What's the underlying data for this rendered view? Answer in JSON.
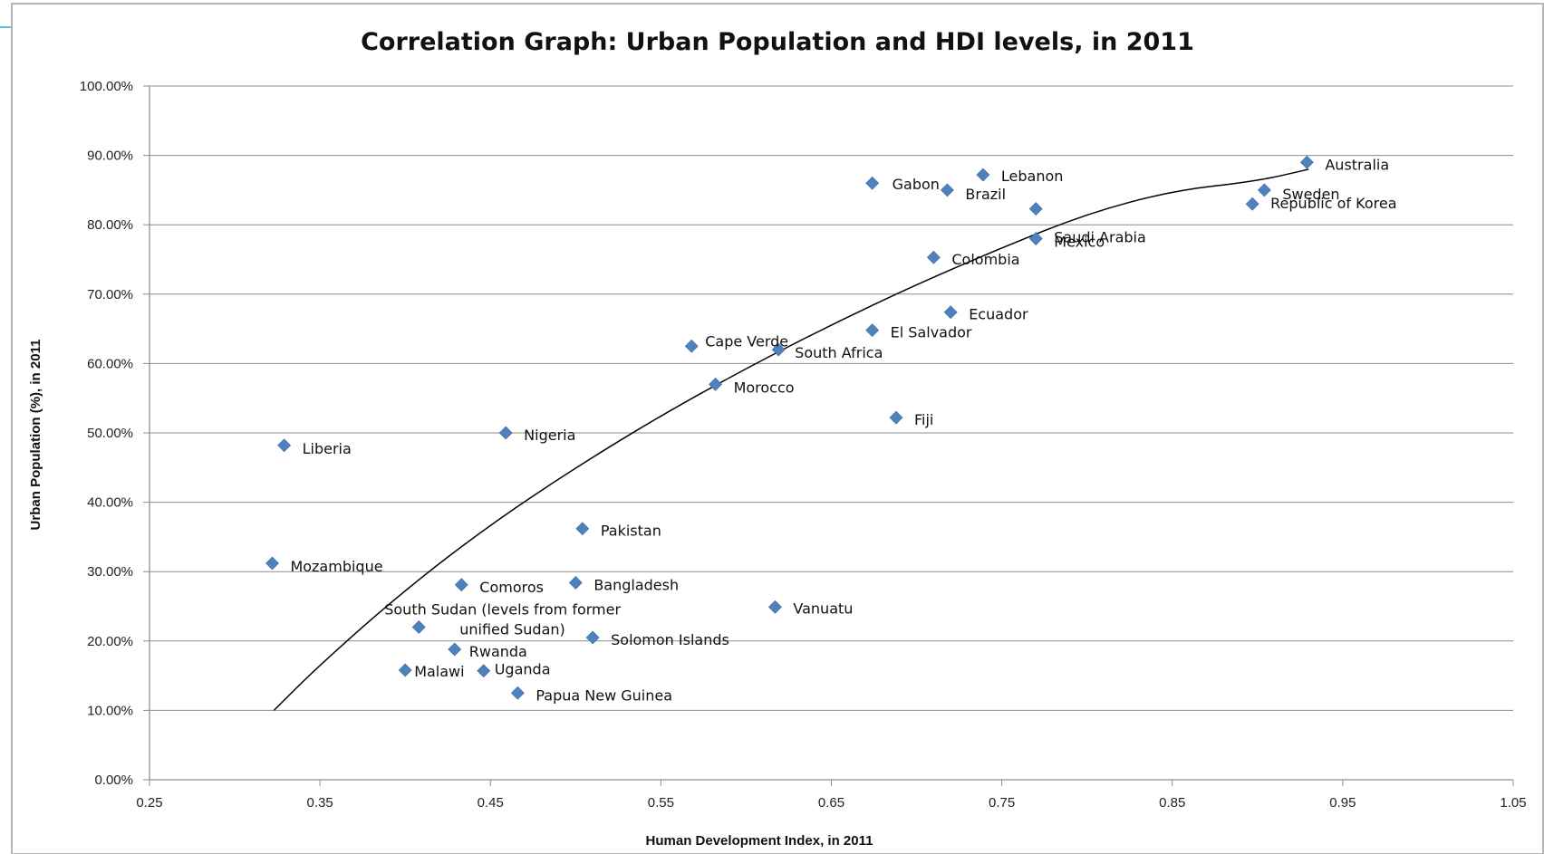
{
  "chart_data": {
    "type": "scatter",
    "title": "Correlation Graph: Urban Population and HDI levels, in 2011",
    "xlabel": "Human Development Index, in 2011",
    "ylabel": "Urban Population (%), in 2011",
    "xlim": [
      0.25,
      1.05
    ],
    "ylim": [
      0,
      100
    ],
    "x_ticks": [
      0.25,
      0.35,
      0.45,
      0.55,
      0.65,
      0.75,
      0.85,
      0.95,
      1.05
    ],
    "x_tick_labels": [
      "0.25",
      "0.35",
      "0.45",
      "0.55",
      "0.65",
      "0.75",
      "0.85",
      "0.95",
      "1.05"
    ],
    "y_ticks": [
      0,
      10,
      20,
      30,
      40,
      50,
      60,
      70,
      80,
      90,
      100
    ],
    "y_tick_labels": [
      "0.00%",
      "10.00%",
      "20.00%",
      "30.00%",
      "40.00%",
      "50.00%",
      "60.00%",
      "70.00%",
      "80.00%",
      "90.00%",
      "100.00%"
    ],
    "grid": "horizontal",
    "marker_color": "#4f81bd",
    "trendline": {
      "type": "logarithmic",
      "color": "#000000",
      "points": [
        {
          "x": 0.323,
          "y": 10.0
        },
        {
          "x": 0.35,
          "y": 16.6
        },
        {
          "x": 0.4,
          "y": 27.4
        },
        {
          "x": 0.45,
          "y": 36.8
        },
        {
          "x": 0.5,
          "y": 45.0
        },
        {
          "x": 0.55,
          "y": 52.5
        },
        {
          "x": 0.6,
          "y": 59.3
        },
        {
          "x": 0.65,
          "y": 65.6
        },
        {
          "x": 0.7,
          "y": 71.4
        },
        {
          "x": 0.75,
          "y": 76.7
        },
        {
          "x": 0.8,
          "y": 81.6
        },
        {
          "x": 0.85,
          "y": 84.9
        },
        {
          "x": 0.9,
          "y": 86.3
        },
        {
          "x": 0.93,
          "y": 88.0
        }
      ]
    },
    "points": [
      {
        "name": "Australia",
        "x": 0.929,
        "y": 89.0
      },
      {
        "name": "Sweden",
        "x": 0.904,
        "y": 85.0
      },
      {
        "name": "Republic of Korea",
        "x": 0.897,
        "y": 83.0
      },
      {
        "name": "Lebanon",
        "x": 0.739,
        "y": 87.2
      },
      {
        "name": "Gabon",
        "x": 0.674,
        "y": 86.0
      },
      {
        "name": "Brazil",
        "x": 0.718,
        "y": 85.0
      },
      {
        "name": "Saudi Arabia",
        "x": 0.77,
        "y": 82.3
      },
      {
        "name": "Mexico",
        "x": 0.77,
        "y": 78.0
      },
      {
        "name": "Colombia",
        "x": 0.71,
        "y": 75.3
      },
      {
        "name": "Ecuador",
        "x": 0.72,
        "y": 67.4
      },
      {
        "name": "El Salvador",
        "x": 0.674,
        "y": 64.8
      },
      {
        "name": "Cape Verde",
        "x": 0.568,
        "y": 62.5
      },
      {
        "name": "South Africa",
        "x": 0.619,
        "y": 62.0
      },
      {
        "name": "Morocco",
        "x": 0.582,
        "y": 57.0
      },
      {
        "name": "Fiji",
        "x": 0.688,
        "y": 52.2
      },
      {
        "name": "Nigeria",
        "x": 0.459,
        "y": 50.0
      },
      {
        "name": "Liberia",
        "x": 0.329,
        "y": 48.2
      },
      {
        "name": "Pakistan",
        "x": 0.504,
        "y": 36.2
      },
      {
        "name": "Mozambique",
        "x": 0.322,
        "y": 31.2
      },
      {
        "name": "Comoros",
        "x": 0.433,
        "y": 28.1
      },
      {
        "name": "Bangladesh",
        "x": 0.5,
        "y": 28.4
      },
      {
        "name": "Vanuatu",
        "x": 0.617,
        "y": 24.9
      },
      {
        "name": "South Sudan (levels from former unified Sudan)",
        "x": 0.408,
        "y": 22.0
      },
      {
        "name": "Solomon Islands",
        "x": 0.51,
        "y": 20.5
      },
      {
        "name": "Rwanda",
        "x": 0.429,
        "y": 18.8
      },
      {
        "name": "Malawi",
        "x": 0.4,
        "y": 15.8
      },
      {
        "name": "Uganda",
        "x": 0.446,
        "y": 15.7
      },
      {
        "name": "Papua New Guinea",
        "x": 0.466,
        "y": 12.5
      }
    ]
  }
}
